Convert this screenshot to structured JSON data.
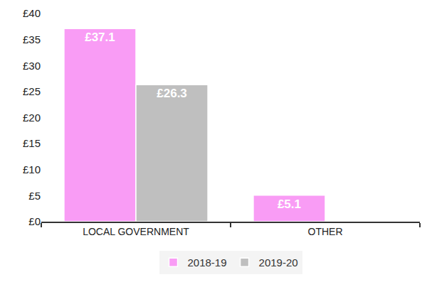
{
  "chart_data": {
    "type": "bar",
    "categories": [
      "LOCAL GOVERNMENT",
      "OTHER"
    ],
    "series": [
      {
        "name": "2018-19",
        "color": "#f99cf5",
        "values": [
          37.1,
          5.1
        ],
        "value_labels": [
          "£37.1",
          "£5.1"
        ]
      },
      {
        "name": "2019-20",
        "color": "#bfbfbf",
        "values": [
          26.3,
          null
        ],
        "value_labels": [
          "£26.3",
          null
        ]
      }
    ],
    "ylim": [
      0,
      40
    ],
    "yticks": [
      {
        "value": 0,
        "label": "£0"
      },
      {
        "value": 5,
        "label": "£5"
      },
      {
        "value": 10,
        "label": "£10"
      },
      {
        "value": 15,
        "label": "£15"
      },
      {
        "value": 20,
        "label": "£20"
      },
      {
        "value": 25,
        "label": "£25"
      },
      {
        "value": 30,
        "label": "£30"
      },
      {
        "value": 35,
        "label": "£35"
      },
      {
        "value": 40,
        "label": "£40"
      }
    ],
    "grid": false,
    "legend": "bottom",
    "data_labels": true
  }
}
